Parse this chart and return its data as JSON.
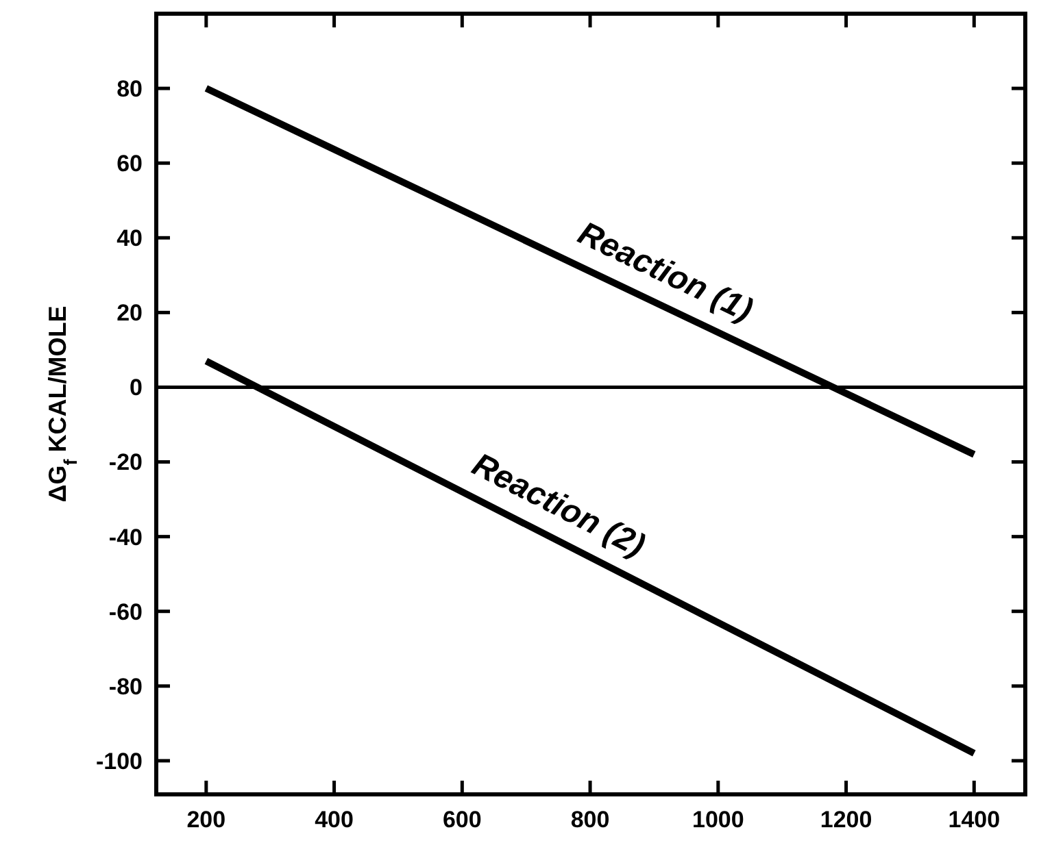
{
  "chart_data": {
    "type": "line",
    "ylabel": "ΔG$_{f}$ KCAL/MOLE",
    "x": [
      200,
      1400
    ],
    "series": [
      {
        "color": "#000000",
        "values": [
          80,
          -18
        ]
      },
      {
        "color": "#000000",
        "values": [
          7,
          -98
        ]
      }
    ],
    "xlim": [
      122,
      1480
    ],
    "ylim": [
      -109,
      100
    ],
    "xticks": [
      200,
      400,
      600,
      800,
      1000,
      1200,
      1400
    ],
    "yticks": [
      -100,
      -80,
      -60,
      -40,
      -20,
      0,
      20,
      40,
      60,
      80
    ],
    "ref_lines": [
      {
        "axis": "y",
        "value": 0,
        "color": "#000000"
      }
    ],
    "annotations": [
      "Reaction (1)",
      "Reaction (2)"
    ],
    "grid": false,
    "marker": "none",
    "line_style": "solid"
  }
}
